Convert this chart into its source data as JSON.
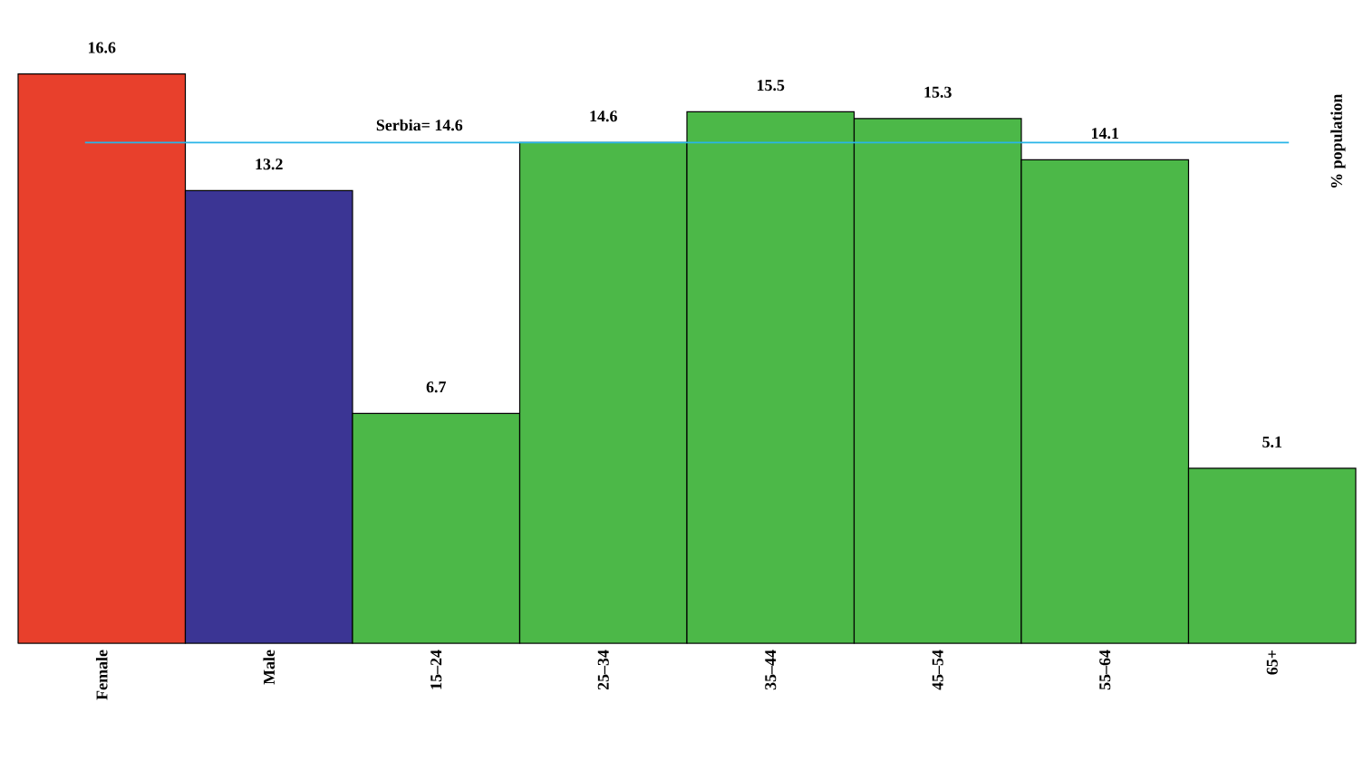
{
  "chart_data": {
    "type": "bar",
    "categories": [
      "Female",
      "Male",
      "15–24",
      "25–34",
      "35–44",
      "45–54",
      "55–64",
      "65+"
    ],
    "values": [
      16.6,
      13.2,
      6.7,
      14.6,
      15.5,
      15.3,
      14.1,
      5.1
    ],
    "colors": [
      "#e8402c",
      "#3b3594",
      "#4cb848",
      "#4cb848",
      "#4cb848",
      "#4cb848",
      "#4cb848",
      "#4cb848"
    ],
    "ylabel": "% population",
    "data_labels": true,
    "ref_lines": [
      {
        "axis": "y",
        "value": 14.6,
        "label": "Serbia= 14.6",
        "color": "#29b5e8"
      }
    ]
  }
}
